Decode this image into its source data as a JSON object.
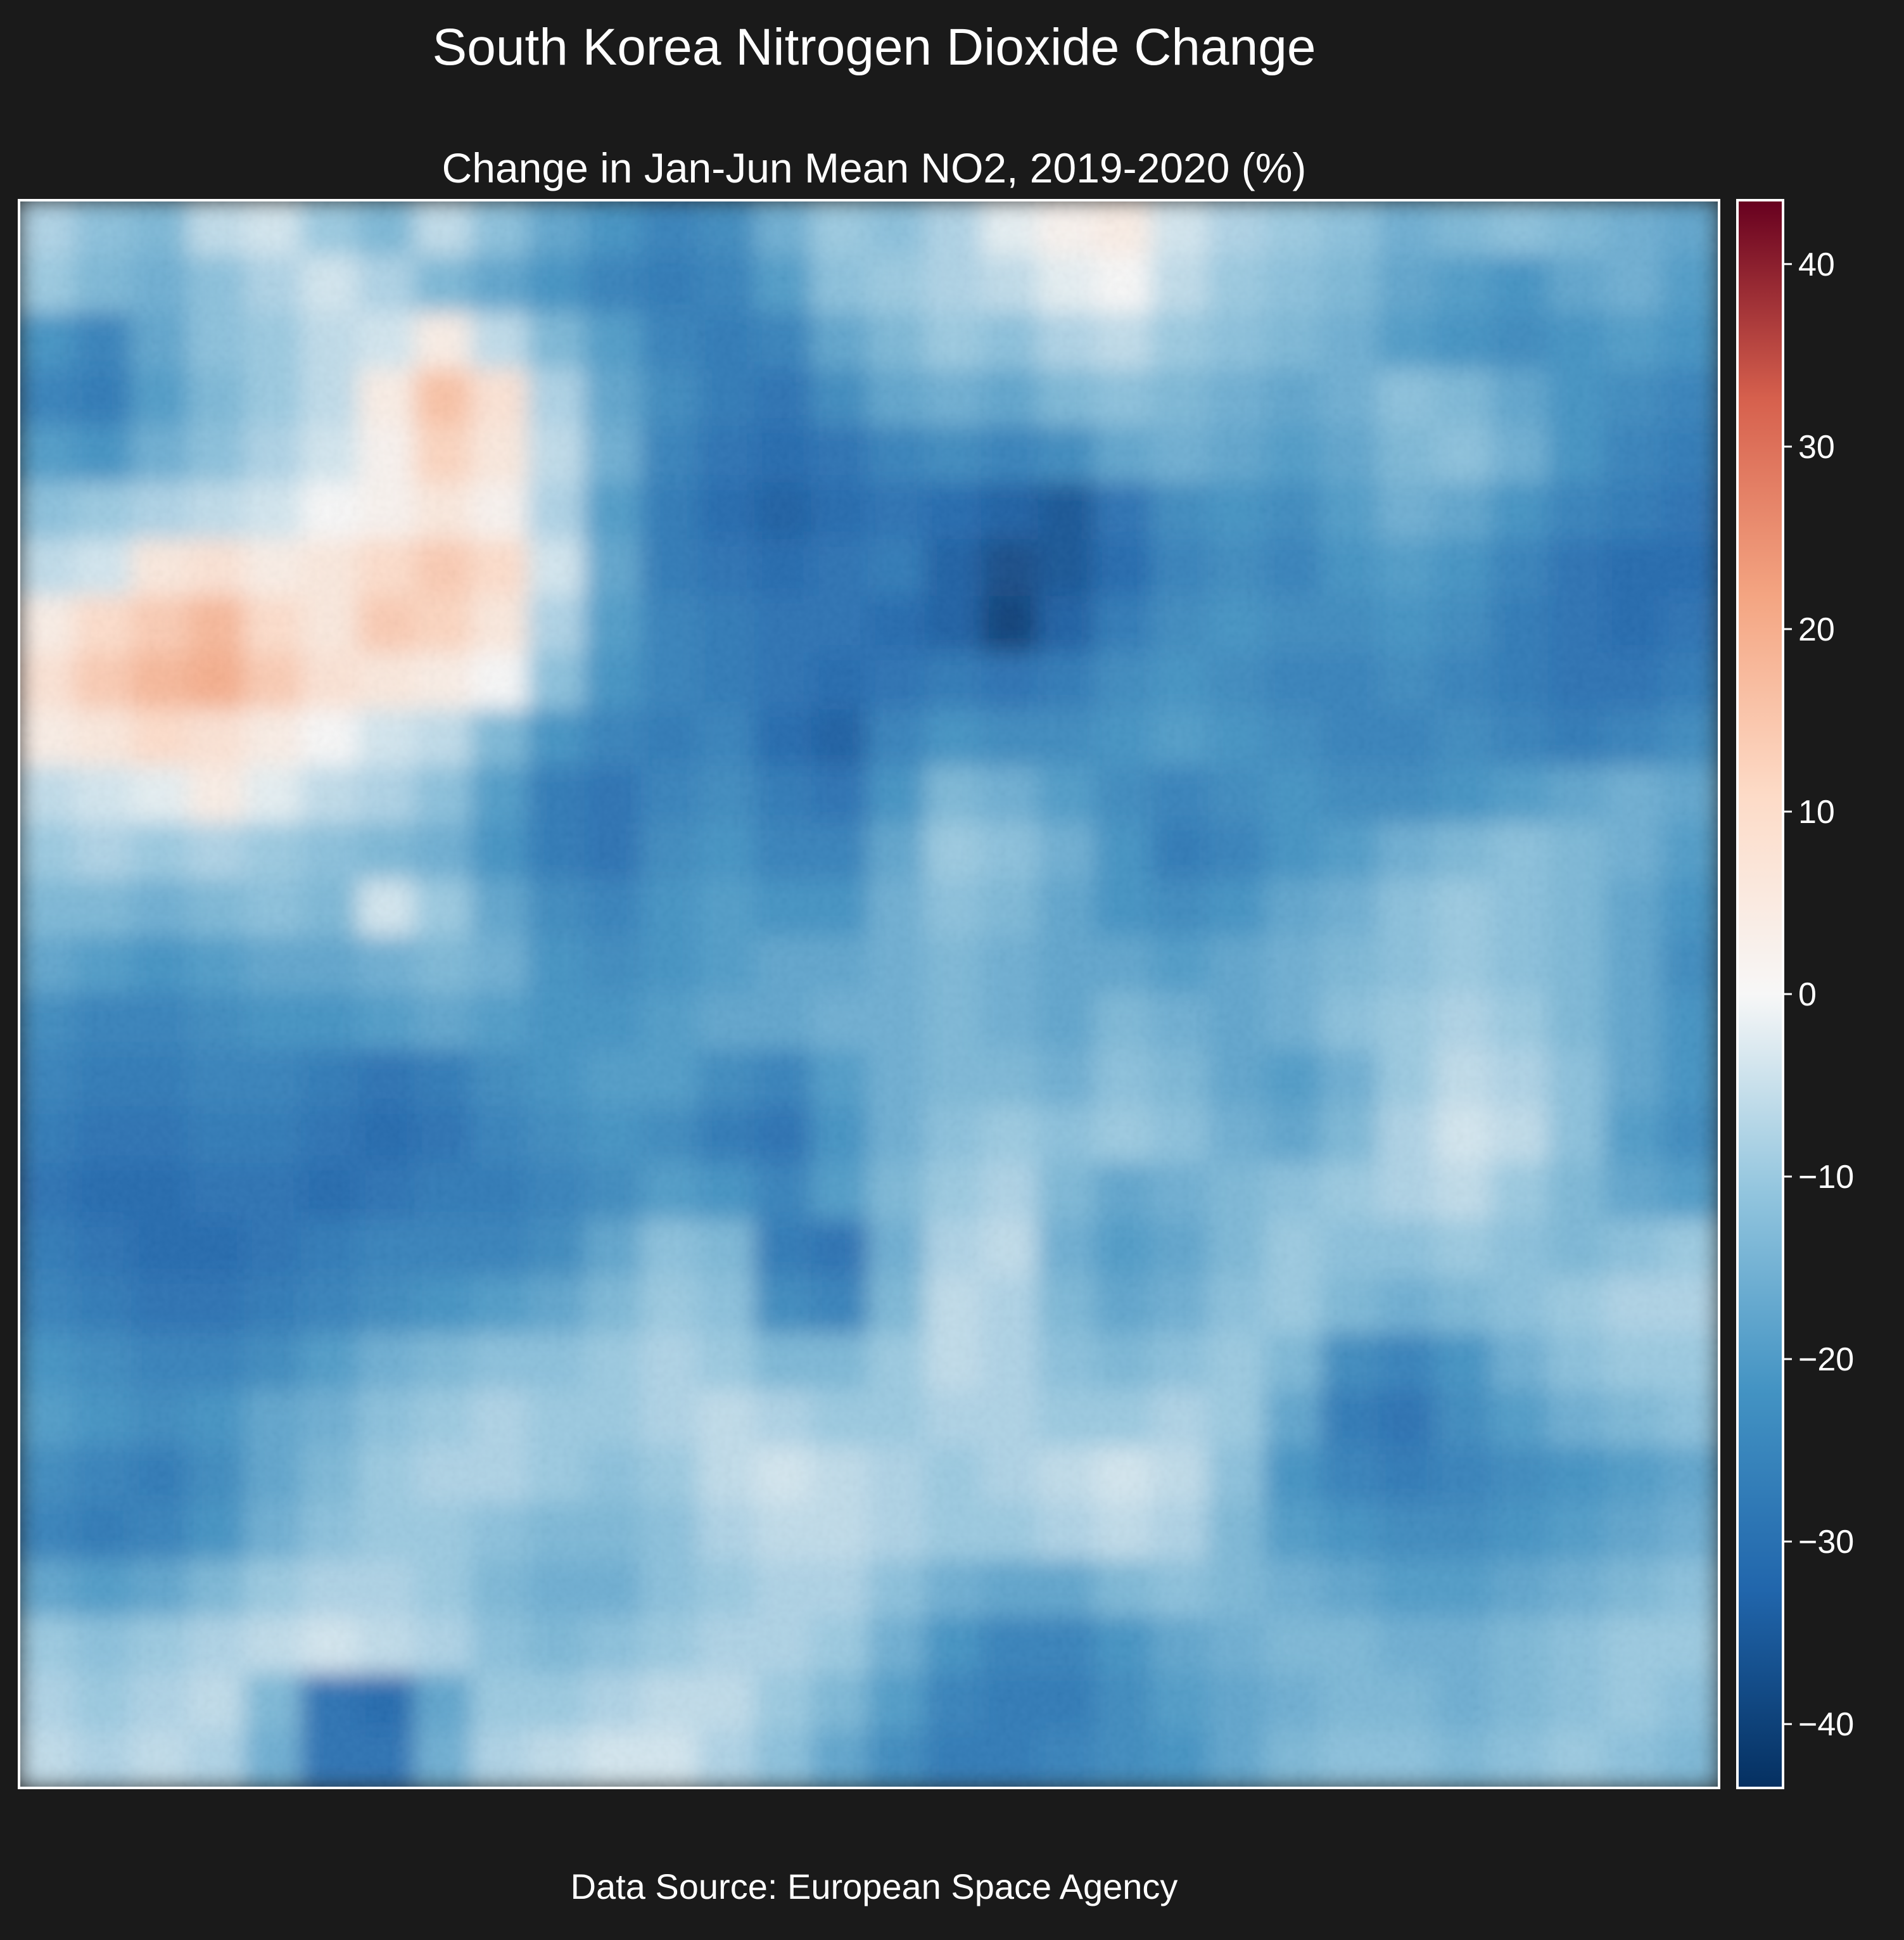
{
  "figure": {
    "title": "South Korea Nitrogen Dioxide Change",
    "source": "Data Source: European Space Agency"
  },
  "chart_data": {
    "type": "heatmap",
    "title": "Change in Jan-Jun Mean NO2, 2019-2020 (%)",
    "xlabel": "",
    "ylabel": "",
    "colormap": "RdBu_r",
    "colorbar": {
      "vmin": -43.5,
      "vmax": 43.5,
      "ticks": [
        -40,
        -30,
        -20,
        -10,
        0,
        10,
        20,
        30,
        40
      ],
      "tick_labels": [
        "−40",
        "−30",
        "−20",
        "−10",
        "0",
        "10",
        "20",
        "30",
        "40"
      ]
    },
    "grid": false,
    "axes_visible": false,
    "grid_resolution": {
      "cols": 30,
      "rows": 28
    },
    "approx_values_percent": [
      [
        -8,
        -12,
        -14,
        -6,
        -4,
        -10,
        -14,
        -6,
        -12,
        -18,
        -22,
        -26,
        -24,
        -16,
        -10,
        -12,
        -8,
        -2,
        2,
        4,
        -4,
        -8,
        -10,
        -12,
        -16,
        -14,
        -12,
        -14,
        -16,
        -18
      ],
      [
        -10,
        -14,
        -16,
        -12,
        -8,
        -4,
        -8,
        -14,
        -18,
        -22,
        -26,
        -28,
        -26,
        -20,
        -12,
        -10,
        -8,
        -6,
        -2,
        0,
        -6,
        -10,
        -12,
        -14,
        -18,
        -20,
        -22,
        -18,
        -16,
        -20
      ],
      [
        -22,
        -26,
        -18,
        -12,
        -10,
        -6,
        -4,
        4,
        -6,
        -14,
        -20,
        -26,
        -28,
        -26,
        -18,
        -14,
        -10,
        -12,
        -8,
        -6,
        -10,
        -12,
        -14,
        -16,
        -20,
        -22,
        -24,
        -22,
        -20,
        -22
      ],
      [
        -26,
        -28,
        -20,
        -14,
        -10,
        -6,
        4,
        16,
        8,
        -8,
        -18,
        -24,
        -28,
        -30,
        -24,
        -18,
        -16,
        -18,
        -14,
        -12,
        -14,
        -16,
        -18,
        -16,
        -12,
        -14,
        -18,
        -22,
        -24,
        -26
      ],
      [
        -20,
        -22,
        -16,
        -12,
        -8,
        -4,
        2,
        12,
        6,
        -6,
        -16,
        -26,
        -30,
        -32,
        -30,
        -26,
        -24,
        -26,
        -24,
        -18,
        -16,
        -18,
        -20,
        -18,
        -14,
        -12,
        -16,
        -22,
        -26,
        -28
      ],
      [
        -12,
        -10,
        -8,
        -6,
        -4,
        0,
        2,
        6,
        2,
        -8,
        -20,
        -28,
        -32,
        -34,
        -32,
        -30,
        -32,
        -34,
        -36,
        -30,
        -24,
        -22,
        -24,
        -20,
        -16,
        -18,
        -22,
        -26,
        -28,
        -30
      ],
      [
        -6,
        -4,
        6,
        8,
        4,
        6,
        10,
        14,
        10,
        -4,
        -18,
        -28,
        -30,
        -32,
        -30,
        -28,
        -34,
        -38,
        -36,
        -32,
        -26,
        -24,
        -26,
        -22,
        -20,
        -22,
        -26,
        -30,
        -32,
        -32
      ],
      [
        4,
        10,
        14,
        18,
        10,
        6,
        14,
        12,
        6,
        -8,
        -20,
        -26,
        -28,
        -30,
        -30,
        -32,
        -34,
        -40,
        -34,
        -28,
        -24,
        -22,
        -24,
        -24,
        -22,
        -24,
        -28,
        -30,
        -32,
        -30
      ],
      [
        8,
        14,
        18,
        20,
        14,
        8,
        6,
        4,
        0,
        -12,
        -22,
        -26,
        -28,
        -30,
        -32,
        -30,
        -28,
        -30,
        -28,
        -24,
        -22,
        -24,
        -26,
        -26,
        -24,
        -26,
        -28,
        -30,
        -30,
        -28
      ],
      [
        4,
        6,
        10,
        8,
        4,
        0,
        -4,
        -6,
        -14,
        -22,
        -26,
        -28,
        -26,
        -32,
        -34,
        -26,
        -22,
        -24,
        -24,
        -22,
        -20,
        -22,
        -24,
        -26,
        -26,
        -24,
        -26,
        -28,
        -26,
        -24
      ],
      [
        -6,
        -4,
        -2,
        4,
        -2,
        -6,
        -8,
        -12,
        -20,
        -28,
        -30,
        -26,
        -24,
        -28,
        -30,
        -22,
        -14,
        -16,
        -20,
        -24,
        -26,
        -24,
        -22,
        -24,
        -24,
        -22,
        -20,
        -18,
        -16,
        -18
      ],
      [
        -10,
        -8,
        -10,
        -8,
        -10,
        -12,
        -14,
        -16,
        -22,
        -28,
        -30,
        -24,
        -22,
        -26,
        -26,
        -18,
        -10,
        -12,
        -16,
        -22,
        -28,
        -26,
        -22,
        -20,
        -16,
        -14,
        -12,
        -14,
        -16,
        -20
      ],
      [
        -14,
        -14,
        -16,
        -14,
        -12,
        -14,
        -4,
        -10,
        -18,
        -24,
        -26,
        -22,
        -20,
        -22,
        -22,
        -16,
        -12,
        -14,
        -18,
        -22,
        -24,
        -22,
        -18,
        -16,
        -12,
        -10,
        -12,
        -14,
        -18,
        -22
      ],
      [
        -18,
        -20,
        -22,
        -20,
        -18,
        -18,
        -16,
        -14,
        -16,
        -22,
        -24,
        -22,
        -20,
        -18,
        -18,
        -16,
        -14,
        -16,
        -18,
        -18,
        -20,
        -18,
        -16,
        -14,
        -12,
        -10,
        -12,
        -14,
        -18,
        -24
      ],
      [
        -24,
        -26,
        -26,
        -24,
        -22,
        -22,
        -20,
        -18,
        -20,
        -22,
        -22,
        -20,
        -18,
        -18,
        -16,
        -16,
        -14,
        -16,
        -18,
        -14,
        -16,
        -18,
        -16,
        -12,
        -10,
        -8,
        -10,
        -14,
        -18,
        -22
      ],
      [
        -26,
        -28,
        -28,
        -26,
        -26,
        -28,
        -30,
        -28,
        -24,
        -22,
        -20,
        -20,
        -24,
        -26,
        -20,
        -16,
        -14,
        -14,
        -16,
        -12,
        -14,
        -18,
        -20,
        -16,
        -10,
        -6,
        -8,
        -12,
        -18,
        -22
      ],
      [
        -28,
        -30,
        -30,
        -28,
        -28,
        -30,
        -32,
        -30,
        -26,
        -24,
        -22,
        -24,
        -28,
        -30,
        -22,
        -16,
        -12,
        -10,
        -12,
        -10,
        -12,
        -16,
        -18,
        -14,
        -8,
        -4,
        -6,
        -12,
        -20,
        -24
      ],
      [
        -30,
        -32,
        -32,
        -30,
        -30,
        -32,
        -30,
        -28,
        -28,
        -26,
        -24,
        -20,
        -22,
        -26,
        -20,
        -14,
        -10,
        -8,
        -14,
        -18,
        -16,
        -14,
        -12,
        -10,
        -8,
        -6,
        -10,
        -14,
        -18,
        -20
      ],
      [
        -28,
        -30,
        -32,
        -32,
        -30,
        -28,
        -26,
        -26,
        -26,
        -24,
        -18,
        -12,
        -14,
        -28,
        -30,
        -16,
        -8,
        -6,
        -16,
        -20,
        -18,
        -14,
        -10,
        -12,
        -12,
        -10,
        -12,
        -14,
        -12,
        -10
      ],
      [
        -26,
        -28,
        -30,
        -30,
        -28,
        -26,
        -24,
        -22,
        -20,
        -18,
        -14,
        -10,
        -12,
        -24,
        -26,
        -14,
        -6,
        -8,
        -14,
        -18,
        -16,
        -12,
        -10,
        -14,
        -16,
        -14,
        -12,
        -10,
        -8,
        -8
      ],
      [
        -22,
        -24,
        -26,
        -26,
        -24,
        -20,
        -16,
        -14,
        -12,
        -12,
        -10,
        -8,
        -10,
        -14,
        -14,
        -10,
        -6,
        -8,
        -12,
        -14,
        -12,
        -10,
        -14,
        -24,
        -26,
        -22,
        -16,
        -12,
        -10,
        -10
      ],
      [
        -20,
        -22,
        -24,
        -22,
        -18,
        -16,
        -12,
        -10,
        -8,
        -10,
        -10,
        -8,
        -6,
        -8,
        -10,
        -10,
        -8,
        -8,
        -10,
        -10,
        -8,
        -10,
        -18,
        -28,
        -30,
        -24,
        -20,
        -16,
        -14,
        -12
      ],
      [
        -24,
        -26,
        -28,
        -24,
        -18,
        -14,
        -10,
        -8,
        -8,
        -10,
        -12,
        -10,
        -6,
        -4,
        -6,
        -8,
        -10,
        -8,
        -6,
        -4,
        -6,
        -12,
        -22,
        -26,
        -28,
        -26,
        -24,
        -22,
        -20,
        -18
      ],
      [
        -26,
        -28,
        -26,
        -22,
        -16,
        -12,
        -10,
        -10,
        -12,
        -14,
        -14,
        -12,
        -8,
        -6,
        -6,
        -8,
        -10,
        -10,
        -8,
        -6,
        -8,
        -14,
        -20,
        -22,
        -24,
        -24,
        -22,
        -20,
        -18,
        -16
      ],
      [
        -18,
        -20,
        -18,
        -14,
        -10,
        -8,
        -8,
        -10,
        -14,
        -16,
        -16,
        -12,
        -10,
        -8,
        -8,
        -12,
        -16,
        -18,
        -18,
        -14,
        -12,
        -14,
        -16,
        -18,
        -20,
        -20,
        -18,
        -16,
        -14,
        -12
      ],
      [
        -10,
        -12,
        -10,
        -8,
        -6,
        -4,
        -6,
        -8,
        -12,
        -14,
        -12,
        -10,
        -8,
        -8,
        -10,
        -16,
        -22,
        -26,
        -26,
        -22,
        -18,
        -16,
        -14,
        -14,
        -16,
        -16,
        -14,
        -12,
        -10,
        -10
      ],
      [
        -8,
        -10,
        -8,
        -6,
        -14,
        -30,
        -32,
        -18,
        -10,
        -10,
        -8,
        -6,
        -6,
        -10,
        -14,
        -20,
        -26,
        -28,
        -28,
        -24,
        -20,
        -18,
        -16,
        -14,
        -14,
        -16,
        -14,
        -12,
        -10,
        -12
      ],
      [
        -6,
        -8,
        -6,
        -8,
        -16,
        -30,
        -30,
        -16,
        -8,
        -6,
        -4,
        -4,
        -8,
        -12,
        -18,
        -24,
        -28,
        -28,
        -26,
        -24,
        -22,
        -18,
        -14,
        -12,
        -12,
        -14,
        -12,
        -10,
        -12,
        -14
      ]
    ]
  },
  "colors": {
    "background": "#1a1a1a",
    "text": "#ffffff",
    "frame": "#ffffff"
  }
}
